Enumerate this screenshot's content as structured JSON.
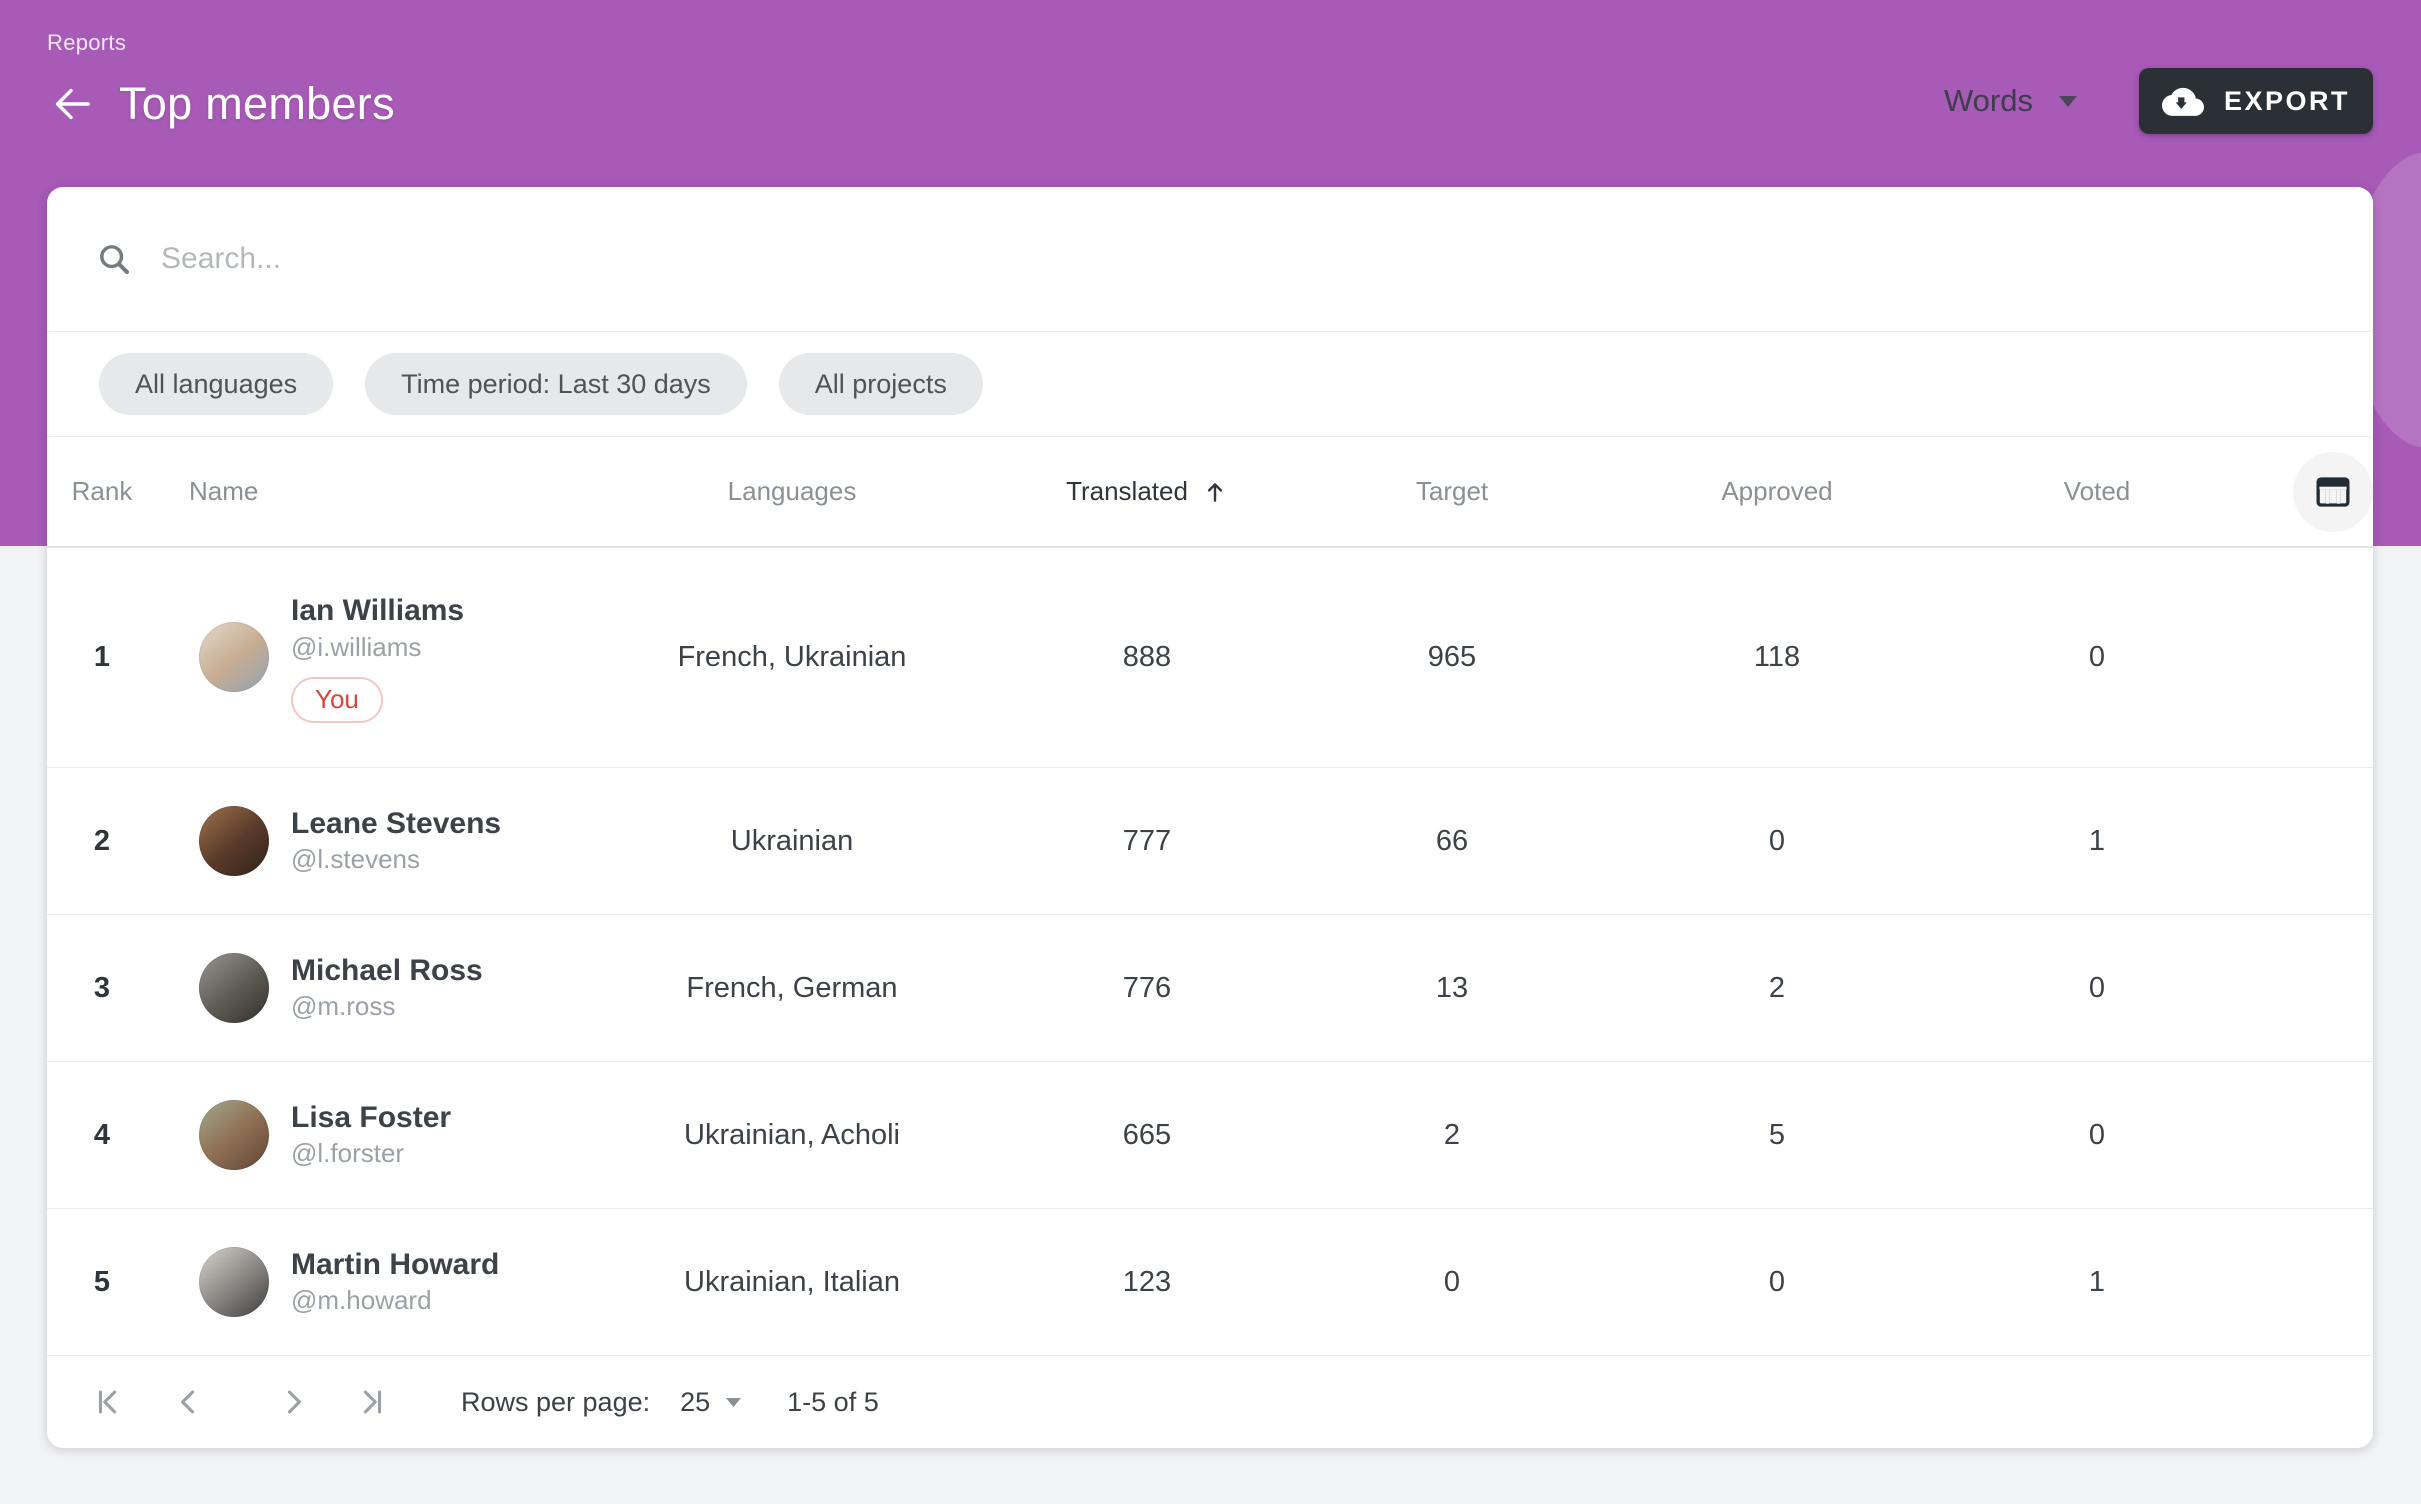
{
  "header": {
    "breadcrumb": "Reports",
    "title": "Top members",
    "unit_selector": {
      "value": "Words"
    },
    "export_button": {
      "label": "EXPORT"
    }
  },
  "search": {
    "placeholder": "Search..."
  },
  "filters": [
    {
      "label": "All languages"
    },
    {
      "label": "Time period: Last 30 days"
    },
    {
      "label": "All projects"
    }
  ],
  "table": {
    "columns": [
      "Rank",
      "Name",
      "Languages",
      "Translated",
      "Target",
      "Approved",
      "Voted"
    ],
    "sort": {
      "column": "Translated",
      "direction": "asc"
    },
    "rows": [
      {
        "rank": "1",
        "name": "Ian Williams",
        "username": "@i.williams",
        "badge": "You",
        "languages": "French, Ukrainian",
        "translated": "888",
        "target": "965",
        "approved": "118",
        "voted": "0",
        "avatar_colors": [
          "#e3dacd",
          "#c7ad92",
          "#8fa3b4"
        ]
      },
      {
        "rank": "2",
        "name": "Leane Stevens",
        "username": "@l.stevens",
        "languages": "Ukrainian",
        "translated": "777",
        "target": "66",
        "approved": "0",
        "voted": "1",
        "avatar_colors": [
          "#a0734d",
          "#5a3b2a",
          "#2f211a"
        ]
      },
      {
        "rank": "3",
        "name": "Michael Ross",
        "username": "@m.ross",
        "languages": "French, German",
        "translated": "776",
        "target": "13",
        "approved": "2",
        "voted": "0",
        "avatar_colors": [
          "#9a9894",
          "#5f5b55",
          "#33302c"
        ]
      },
      {
        "rank": "4",
        "name": "Lisa Foster",
        "username": "@l.forster",
        "languages": "Ukrainian, Acholi",
        "translated": "665",
        "target": "2",
        "approved": "5",
        "voted": "0",
        "avatar_colors": [
          "#a3a98f",
          "#8f6e53",
          "#5f4434"
        ]
      },
      {
        "rank": "5",
        "name": "Martin Howard",
        "username": "@m.howard",
        "languages": "Ukrainian, Italian",
        "translated": "123",
        "target": "0",
        "approved": "0",
        "voted": "1",
        "avatar_colors": [
          "#d9d5d0",
          "#8a8783",
          "#3d3c3e"
        ]
      }
    ]
  },
  "pagination": {
    "rows_per_page_label": "Rows per page:",
    "rows_per_page": "25",
    "range": "1-5 of 5"
  },
  "colors": {
    "header_purple": "#a75ab6",
    "header_wave": "#ffffff",
    "export_button_bg": "#2b3037",
    "badge_red": "#d9453c",
    "chip_bg": "#e7e8e9",
    "page_bg": "#f1f3f4"
  }
}
